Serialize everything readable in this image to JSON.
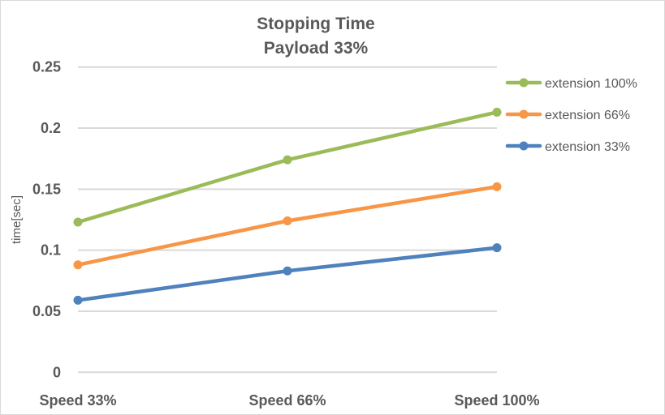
{
  "chart_data": {
    "type": "line",
    "title": [
      "Stopping Time",
      "Payload 33%"
    ],
    "xlabel": "",
    "ylabel": "time[sec]",
    "categories": [
      "Speed 33%",
      "Speed 66%",
      "Speed 100%"
    ],
    "ylim": [
      0,
      0.25
    ],
    "yticks": [
      "0",
      "0.05",
      "0.1",
      "0.15",
      "0.2",
      "0.25"
    ],
    "grid": true,
    "legend_position": "right",
    "series": [
      {
        "name": "extension 100%",
        "color": "#9bbb59",
        "values": [
          0.123,
          0.174,
          0.213
        ]
      },
      {
        "name": "extension 66%",
        "color": "#f79646",
        "values": [
          0.088,
          0.124,
          0.152
        ]
      },
      {
        "name": "extension 33%",
        "color": "#4f81bd",
        "values": [
          0.059,
          0.083,
          0.102
        ]
      }
    ]
  }
}
